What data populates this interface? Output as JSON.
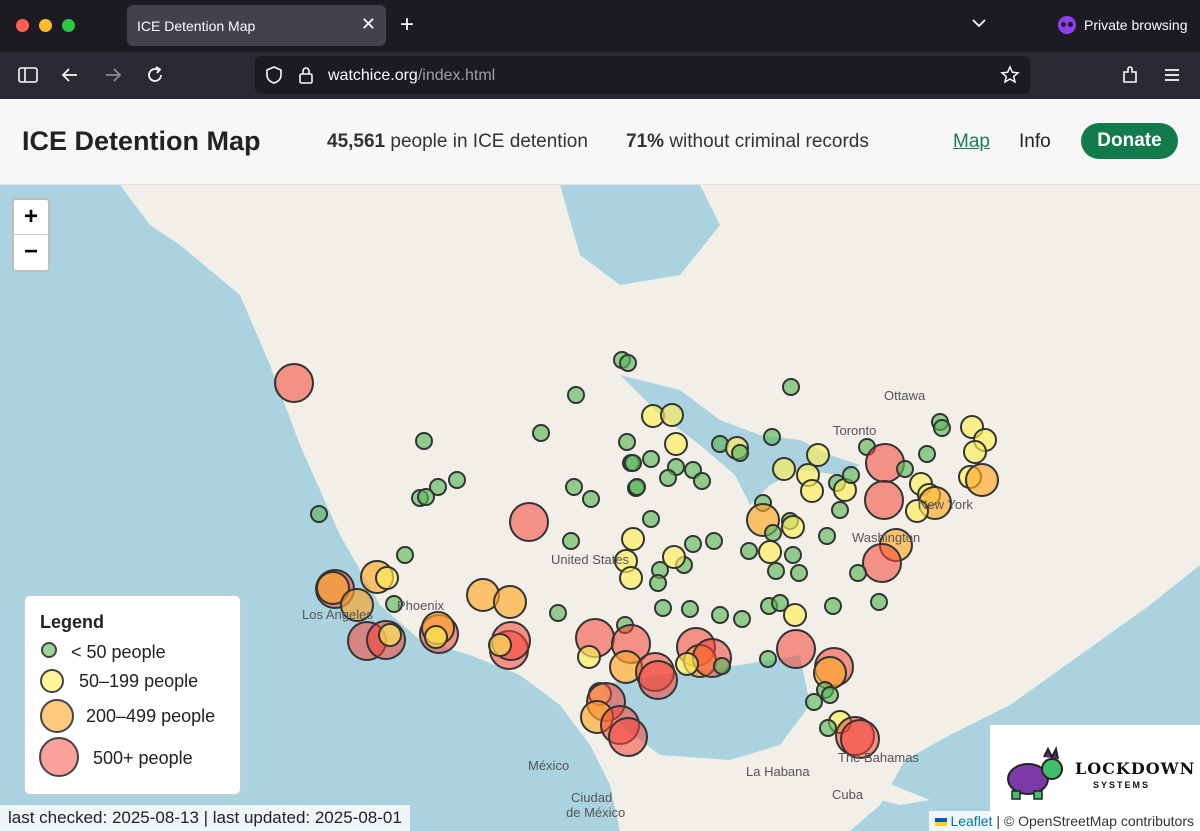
{
  "browser": {
    "tab_title": "ICE Detention Map",
    "tab_close": "✕",
    "new_tab": "+",
    "private_label": "Private browsing",
    "url_host": "watchice.org",
    "url_path": "/index.html"
  },
  "header": {
    "title": "ICE Detention Map",
    "stat1_value": "45,561",
    "stat1_text": "people in ICE detention",
    "stat2_value": "71%",
    "stat2_text": "without criminal records",
    "nav_map": "Map",
    "nav_info": "Info",
    "donate": "Donate"
  },
  "map": {
    "zoom_in": "+",
    "zoom_out": "−",
    "cities": {
      "ottawa": "Ottawa",
      "toronto": "Toronto",
      "newyork": "New York",
      "washington": "Washington",
      "unitedstates": "United States",
      "phoenix": "Phoenix",
      "losangeles": "Los Angeles",
      "mexico": "México",
      "ciudad": "Ciudad",
      "demexico": "de México",
      "lahabana": "La Habana",
      "bahamas": "The Bahamas",
      "cuba": "Cuba"
    },
    "colors": {
      "small": "#5cb85c",
      "medium": "#ffee58",
      "large": "#ffa726",
      "xlarge": "#f44336"
    }
  },
  "legend": {
    "title": "Legend",
    "items": [
      "< 50 people",
      "50–199 people",
      "200–499 people",
      "500+ people"
    ]
  },
  "status": "last checked: 2025-08-13 | last updated: 2025-08-01",
  "attribution": {
    "leaflet": "Leaflet",
    "rest": "| © OpenStreetMap contributors"
  },
  "sponsor": {
    "name": "LOCKDOWN",
    "sub": "SYSTEMS"
  }
}
